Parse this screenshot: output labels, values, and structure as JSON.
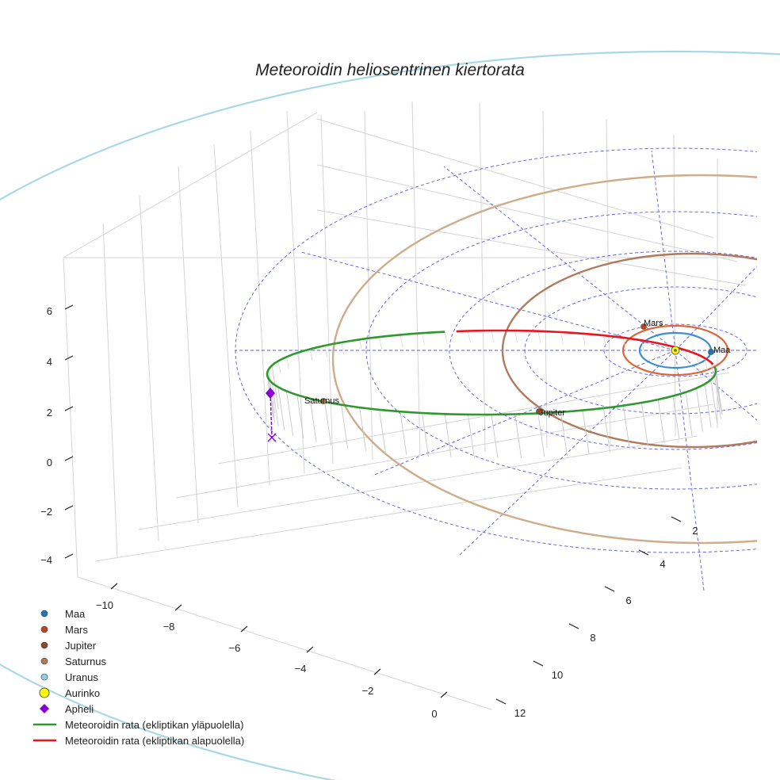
{
  "chart_data": {
    "type": "line3d",
    "title": "Meteoroidin heliosentrinen kiertorata",
    "axes": {
      "x_ticks": [
        "−10",
        "−8",
        "−6",
        "−4",
        "−2",
        "0"
      ],
      "y_ticks": [
        "2",
        "4",
        "6",
        "8",
        "10",
        "12"
      ],
      "z_ticks": [
        "6",
        "4",
        "2",
        "0",
        "−2",
        "−4"
      ],
      "zlim": [
        -4.5,
        7.5
      ],
      "grid": true
    },
    "planets": [
      {
        "name": "Maa",
        "label": "Maa",
        "orbit_radius_au": 1.0,
        "color": "#1f77b4",
        "orbit_color": "#3b8fd0"
      },
      {
        "name": "Mars",
        "label": "Mars",
        "orbit_radius_au": 1.52,
        "color": "#c0441e",
        "orbit_color": "#d9663a"
      },
      {
        "name": "Jupiter",
        "label": "Jupiter",
        "orbit_radius_au": 5.2,
        "color": "#8b4a2b",
        "orbit_color": "#b07a5c"
      },
      {
        "name": "Saturnus",
        "label": "Saturnus",
        "orbit_radius_au": 9.58,
        "color": "#b07a55",
        "orbit_color": "#cfac8a"
      },
      {
        "name": "Uranus",
        "label": "",
        "orbit_radius_au": 19.2,
        "color": "#8ecfe0",
        "orbit_color": "#a8d8e6"
      }
    ],
    "sun": {
      "name": "Aurinko",
      "color": "#ffff00"
    },
    "aphelion": {
      "name": "Apheli",
      "approx_distance_au": 10.3,
      "color": "#8a00d4"
    },
    "meteoroid_orbit": [
      {
        "name": "Meteoroidin rata (ekliptikan yläpuolella)",
        "color": "#2e9a2e"
      },
      {
        "name": "Meteoroidin rata (ekliptikan alapuolella)",
        "color": "#e8141e"
      }
    ],
    "legend": {
      "position": "bottom-left",
      "entries": [
        {
          "label": "Maa",
          "marker": "dot",
          "color": "#1f77b4"
        },
        {
          "label": "Mars",
          "marker": "dot",
          "color": "#c0441e"
        },
        {
          "label": "Jupiter",
          "marker": "dot",
          "color": "#8b4a2b"
        },
        {
          "label": "Saturnus",
          "marker": "dot",
          "color": "#b07a55"
        },
        {
          "label": "Uranus",
          "marker": "dot",
          "color": "#8ecfe0"
        },
        {
          "label": "Aurinko",
          "marker": "sun",
          "color": "#ffff00"
        },
        {
          "label": "Apheli",
          "marker": "diamond",
          "color": "#8a00d4"
        },
        {
          "label": "Meteoroidin rata (ekliptikan yläpuolella)",
          "marker": "line",
          "color": "#2e9a2e"
        },
        {
          "label": "Meteoroidin rata (ekliptikan alapuolella)",
          "marker": "line",
          "color": "#e8141e"
        }
      ]
    }
  }
}
